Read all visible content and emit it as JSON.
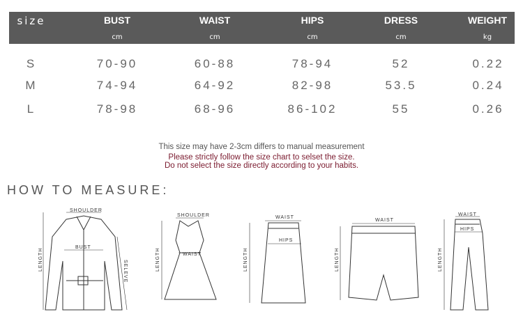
{
  "header": {
    "size_label": "size",
    "columns": [
      {
        "name": "BUST",
        "unit": "cm"
      },
      {
        "name": "WAIST",
        "unit": "cm"
      },
      {
        "name": "HIPS",
        "unit": "cm"
      },
      {
        "name": "DRESS",
        "unit": "cm"
      },
      {
        "name": "WEIGHT",
        "unit": "kg"
      }
    ]
  },
  "rows": [
    {
      "size": "S",
      "values": [
        "70-90",
        "60-88",
        "78-94",
        "52",
        "0.22"
      ]
    },
    {
      "size": "M",
      "values": [
        "74-94",
        "64-92",
        "82-98",
        "53.5",
        "0.24"
      ]
    },
    {
      "size": "L",
      "values": [
        "78-98",
        "68-96",
        "86-102",
        "55",
        "0.26"
      ]
    }
  ],
  "notes": {
    "line1": "This size may have 2-3cm differs to manual measurement",
    "line2": "Please strictly follow the size chart to selset the size.",
    "line3": "Do not select the size directly according to your habits.",
    "warning_color": "#7a1a2e"
  },
  "how_to_measure": {
    "title": "HOW TO MEASURE:",
    "labels": {
      "shoulder": "SHOULDER",
      "bust": "BUST",
      "length": "LENGTH",
      "sleeve": "SELEVE",
      "waist": "WAIST",
      "hips": "HIPS"
    }
  },
  "colors": {
    "header_bg": "#5a5a5a"
  }
}
